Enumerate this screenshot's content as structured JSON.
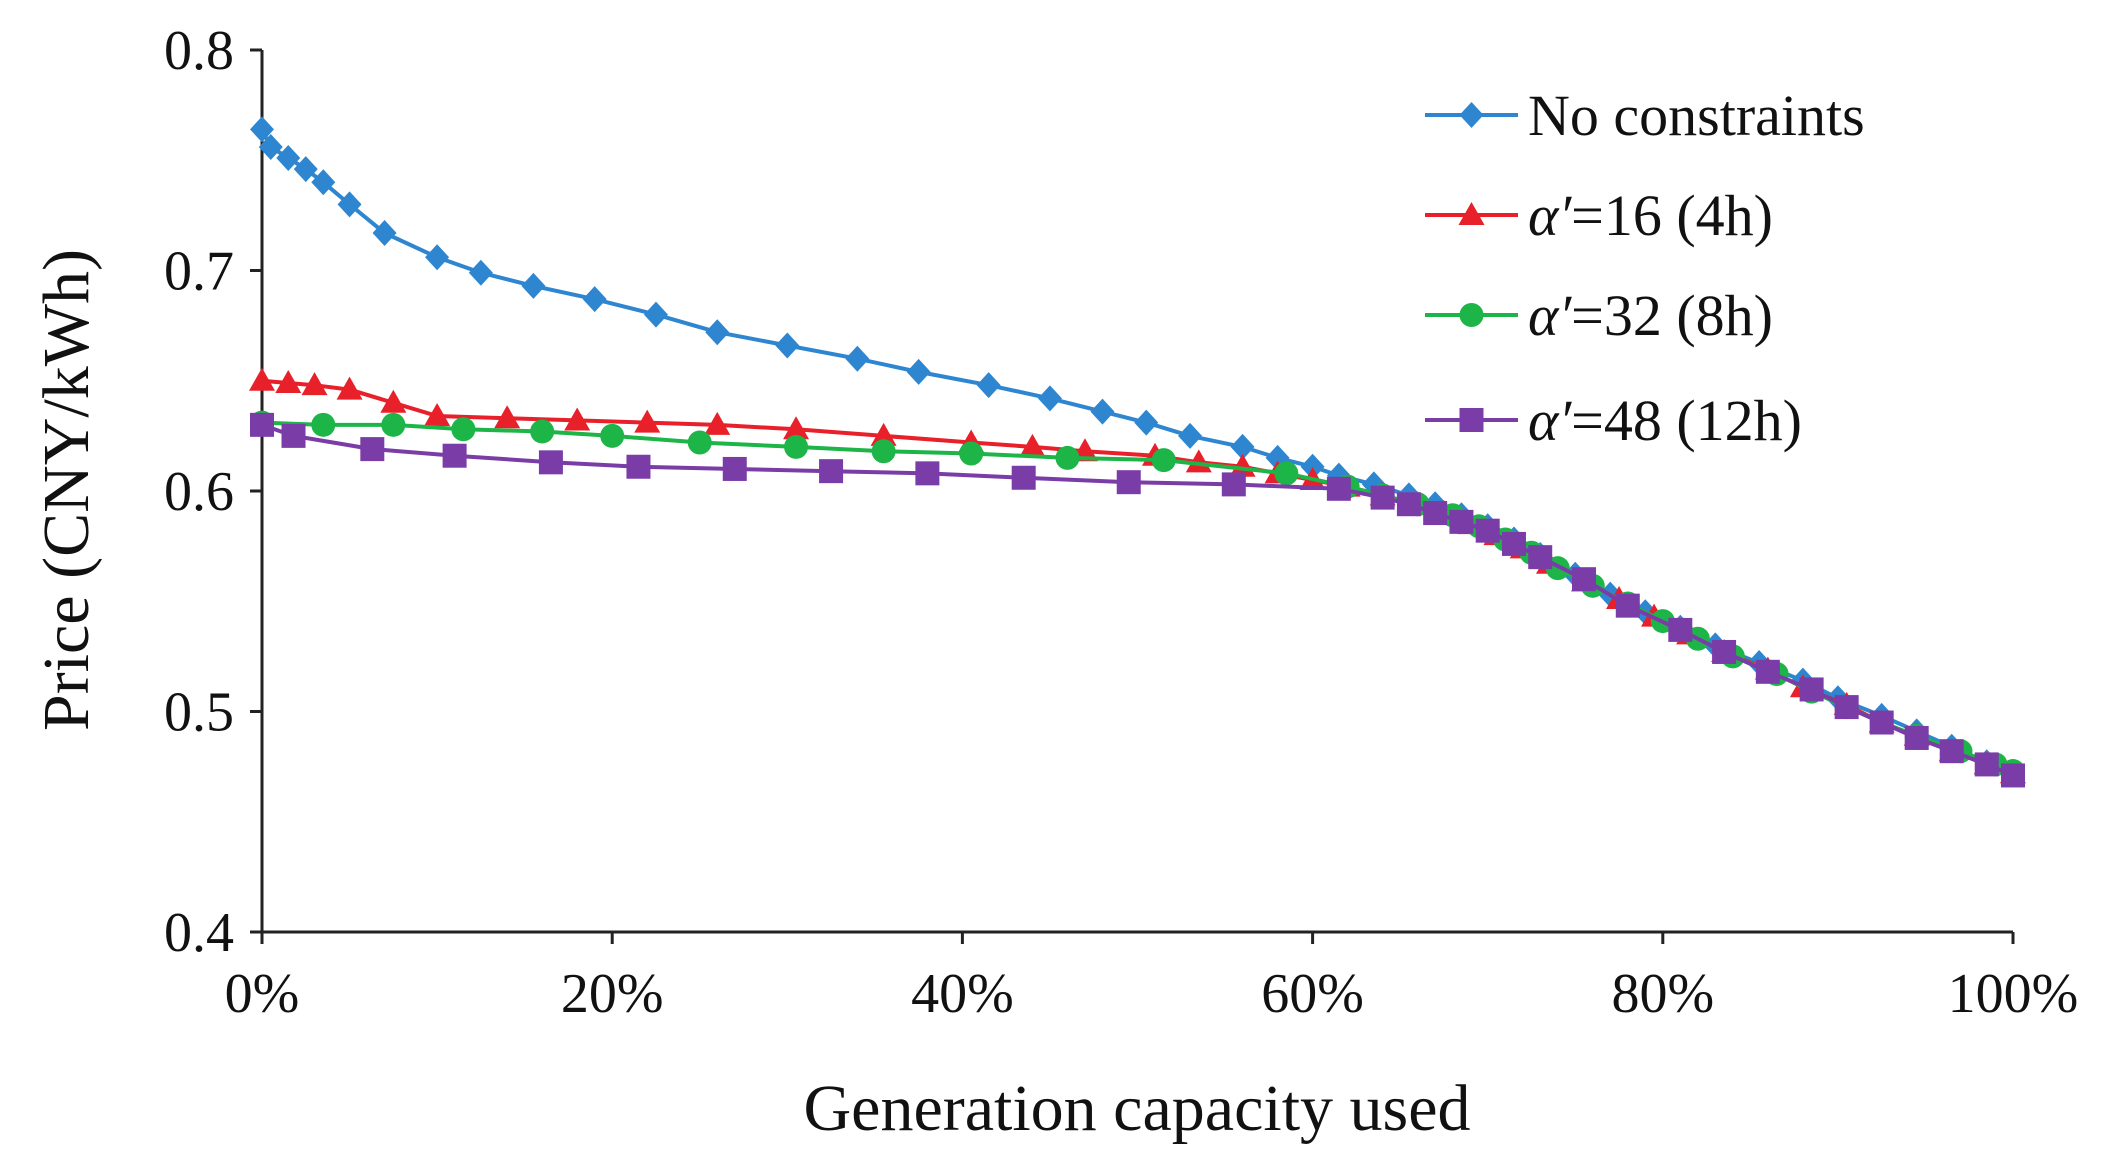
{
  "chart_data": {
    "type": "line",
    "title": "",
    "xlabel": "Generation capacity used",
    "ylabel": "Price (CNY/kWh)",
    "xlim": [
      0,
      100
    ],
    "ylim": [
      0.4,
      0.8
    ],
    "x_ticks": [
      0,
      20,
      40,
      60,
      80,
      100
    ],
    "x_tick_labels": [
      "0%",
      "20%",
      "40%",
      "60%",
      "80%",
      "100%"
    ],
    "y_ticks": [
      0.4,
      0.5,
      0.6,
      0.7,
      0.8
    ],
    "y_tick_labels": [
      "0.4",
      "0.5",
      "0.6",
      "0.7",
      "0.8"
    ],
    "grid": false,
    "legend_position": "top-right",
    "series": [
      {
        "name": "No constraints",
        "legend_label": "No constraints",
        "color": "#2E86D1",
        "marker": "diamond",
        "x": [
          0,
          0.5,
          1.5,
          2.5,
          3.5,
          5,
          7,
          10,
          12.5,
          15.5,
          19,
          22.5,
          26,
          30,
          34,
          37.5,
          41.5,
          45,
          48,
          50.5,
          53,
          56,
          58,
          60,
          61.5,
          63.5,
          65.5,
          67,
          68.5,
          70,
          71.5,
          73,
          75,
          77,
          79,
          81,
          83,
          85.5,
          88,
          90,
          92.5,
          94.5,
          96.5,
          98.5,
          100
        ],
        "y": [
          0.764,
          0.756,
          0.751,
          0.746,
          0.74,
          0.73,
          0.717,
          0.706,
          0.699,
          0.693,
          0.687,
          0.68,
          0.672,
          0.666,
          0.66,
          0.654,
          0.648,
          0.642,
          0.636,
          0.631,
          0.625,
          0.62,
          0.615,
          0.611,
          0.607,
          0.603,
          0.598,
          0.594,
          0.589,
          0.584,
          0.578,
          0.571,
          0.562,
          0.553,
          0.545,
          0.538,
          0.53,
          0.522,
          0.514,
          0.506,
          0.498,
          0.491,
          0.484,
          0.477,
          0.472
        ]
      },
      {
        "name": "α′=16 (4h)",
        "legend_prefix": "α′",
        "legend_suffix": "=16 (4h)",
        "color": "#E8202A",
        "marker": "triangle",
        "x": [
          0,
          1.5,
          3,
          5,
          7.5,
          10,
          14,
          18,
          22,
          26,
          30.5,
          35.5,
          40.5,
          44,
          47,
          51,
          53.5,
          56,
          58,
          60,
          62,
          64,
          66,
          67.5,
          69,
          70.5,
          72,
          73.5,
          75.5,
          77.5,
          79.5,
          81.5,
          83.5,
          86,
          88,
          90.5,
          92.5,
          94.5,
          96.5,
          98.5,
          100
        ],
        "y": [
          0.65,
          0.649,
          0.648,
          0.646,
          0.64,
          0.634,
          0.633,
          0.632,
          0.631,
          0.63,
          0.628,
          0.625,
          0.622,
          0.62,
          0.618,
          0.616,
          0.613,
          0.611,
          0.608,
          0.605,
          0.602,
          0.598,
          0.594,
          0.59,
          0.585,
          0.58,
          0.574,
          0.567,
          0.559,
          0.551,
          0.543,
          0.535,
          0.527,
          0.519,
          0.511,
          0.503,
          0.495,
          0.489,
          0.482,
          0.476,
          0.472
        ]
      },
      {
        "name": "α′=32 (8h)",
        "legend_prefix": "α′",
        "legend_suffix": "=32 (8h)",
        "color": "#1DB548",
        "marker": "circle",
        "x": [
          0,
          3.5,
          7.5,
          11.5,
          16,
          20,
          25,
          30.5,
          35.5,
          40.5,
          46,
          51.5,
          58.5,
          62,
          64,
          66,
          68,
          69.5,
          71,
          72.5,
          74,
          76,
          78,
          80,
          82,
          84,
          86.5,
          88.5,
          90.5,
          92.5,
          94.5,
          97,
          99,
          100
        ],
        "y": [
          0.631,
          0.63,
          0.63,
          0.628,
          0.627,
          0.625,
          0.622,
          0.62,
          0.618,
          0.617,
          0.615,
          0.614,
          0.608,
          0.602,
          0.598,
          0.594,
          0.589,
          0.584,
          0.578,
          0.572,
          0.565,
          0.557,
          0.549,
          0.541,
          0.533,
          0.525,
          0.517,
          0.509,
          0.502,
          0.495,
          0.489,
          0.482,
          0.476,
          0.473
        ]
      },
      {
        "name": "α′=48 (12h)",
        "legend_prefix": "α′",
        "legend_suffix": "=48 (12h)",
        "color": "#7A3DA8",
        "marker": "square",
        "x": [
          0,
          1.8,
          6.3,
          11,
          16.5,
          21.5,
          27,
          32.5,
          38,
          43.5,
          49.5,
          55.5,
          61.5,
          64,
          65.5,
          67,
          68.5,
          70,
          71.5,
          73,
          75.5,
          78,
          81,
          83.5,
          86,
          88.5,
          90.5,
          92.5,
          94.5,
          96.5,
          98.5,
          100
        ],
        "y": [
          0.63,
          0.625,
          0.619,
          0.616,
          0.613,
          0.611,
          0.61,
          0.609,
          0.608,
          0.606,
          0.604,
          0.603,
          0.601,
          0.597,
          0.594,
          0.59,
          0.586,
          0.582,
          0.576,
          0.57,
          0.56,
          0.548,
          0.537,
          0.527,
          0.518,
          0.51,
          0.502,
          0.495,
          0.488,
          0.482,
          0.476,
          0.471
        ]
      }
    ]
  }
}
